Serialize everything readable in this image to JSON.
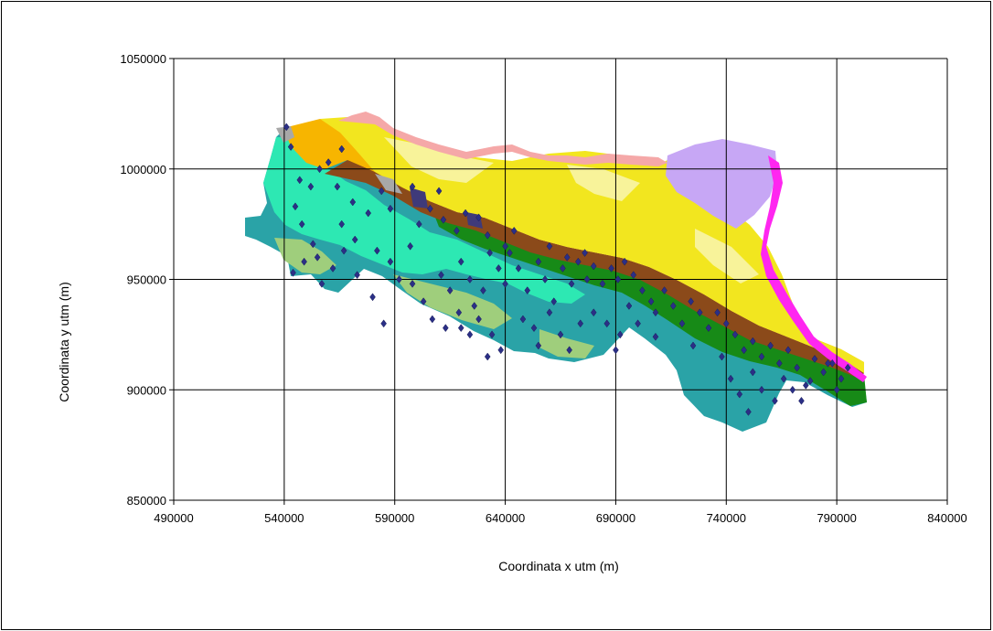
{
  "chart_data": {
    "type": "scatter",
    "title": "",
    "xlabel": "Coordinata x utm (m)",
    "ylabel": "Coordinata y utm (m)",
    "xlim": [
      490000,
      840000
    ],
    "ylim": [
      850000,
      1050000
    ],
    "xticks": [
      "490000",
      "540000",
      "590000",
      "640000",
      "690000",
      "740000",
      "790000",
      "840000"
    ],
    "yticks": [
      "850000",
      "900000",
      "950000",
      "1000000",
      "1050000"
    ],
    "grid": true,
    "background": "geological map of Emilia-Romagna region",
    "series": [
      {
        "marker": "diamond",
        "color": "#2b2f86",
        "points": [
          [
            541000,
            1019000
          ],
          [
            543000,
            1010000
          ],
          [
            547000,
            995000
          ],
          [
            552000,
            992000
          ],
          [
            556000,
            1000000
          ],
          [
            560000,
            1003000
          ],
          [
            566000,
            1009000
          ],
          [
            545000,
            983000
          ],
          [
            548000,
            975000
          ],
          [
            553000,
            966000
          ],
          [
            549000,
            958000
          ],
          [
            544000,
            953000
          ],
          [
            557000,
            948000
          ],
          [
            566000,
            975000
          ],
          [
            572000,
            968000
          ],
          [
            578000,
            980000
          ],
          [
            584000,
            990000
          ],
          [
            588000,
            982000
          ],
          [
            582000,
            963000
          ],
          [
            573000,
            952000
          ],
          [
            580000,
            942000
          ],
          [
            588000,
            958000
          ],
          [
            592000,
            950000
          ],
          [
            597000,
            965000
          ],
          [
            601000,
            975000
          ],
          [
            606000,
            982000
          ],
          [
            612000,
            977000
          ],
          [
            618000,
            972000
          ],
          [
            622000,
            980000
          ],
          [
            628000,
            978000
          ],
          [
            632000,
            970000
          ],
          [
            598000,
            948000
          ],
          [
            603000,
            940000
          ],
          [
            607000,
            932000
          ],
          [
            611000,
            952000
          ],
          [
            615000,
            945000
          ],
          [
            620000,
            958000
          ],
          [
            624000,
            950000
          ],
          [
            626000,
            938000
          ],
          [
            630000,
            945000
          ],
          [
            633000,
            962000
          ],
          [
            637000,
            955000
          ],
          [
            640000,
            948000
          ],
          [
            613000,
            928000
          ],
          [
            619000,
            935000
          ],
          [
            624000,
            925000
          ],
          [
            628000,
            932000
          ],
          [
            634000,
            925000
          ],
          [
            638000,
            918000
          ],
          [
            642000,
            962000
          ],
          [
            646000,
            955000
          ],
          [
            650000,
            945000
          ],
          [
            655000,
            958000
          ],
          [
            658000,
            950000
          ],
          [
            662000,
            940000
          ],
          [
            666000,
            955000
          ],
          [
            670000,
            948000
          ],
          [
            673000,
            958000
          ],
          [
            677000,
            950000
          ],
          [
            680000,
            956000
          ],
          [
            684000,
            948000
          ],
          [
            688000,
            955000
          ],
          [
            691000,
            950000
          ],
          [
            694000,
            958000
          ],
          [
            698000,
            952000
          ],
          [
            702000,
            945000
          ],
          [
            706000,
            940000
          ],
          [
            648000,
            932000
          ],
          [
            653000,
            928000
          ],
          [
            660000,
            935000
          ],
          [
            665000,
            925000
          ],
          [
            669000,
            918000
          ],
          [
            674000,
            930000
          ],
          [
            680000,
            935000
          ],
          [
            686000,
            930000
          ],
          [
            692000,
            925000
          ],
          [
            696000,
            938000
          ],
          [
            700000,
            930000
          ],
          [
            708000,
            935000
          ],
          [
            712000,
            945000
          ],
          [
            716000,
            938000
          ],
          [
            720000,
            930000
          ],
          [
            724000,
            940000
          ],
          [
            728000,
            935000
          ],
          [
            732000,
            928000
          ],
          [
            736000,
            935000
          ],
          [
            740000,
            930000
          ],
          [
            744000,
            925000
          ],
          [
            748000,
            918000
          ],
          [
            752000,
            922000
          ],
          [
            756000,
            915000
          ],
          [
            738000,
            915000
          ],
          [
            742000,
            905000
          ],
          [
            746000,
            898000
          ],
          [
            750000,
            890000
          ],
          [
            752000,
            908000
          ],
          [
            756000,
            900000
          ],
          [
            760000,
            920000
          ],
          [
            764000,
            912000
          ],
          [
            768000,
            918000
          ],
          [
            772000,
            910000
          ],
          [
            776000,
            902000
          ],
          [
            780000,
            914000
          ],
          [
            784000,
            908000
          ],
          [
            788000,
            912000
          ],
          [
            792000,
            905000
          ],
          [
            795000,
            910000
          ],
          [
            790000,
            900000
          ],
          [
            762000,
            895000
          ],
          [
            766000,
            905000
          ],
          [
            770000,
            900000
          ],
          [
            774000,
            895000
          ],
          [
            778000,
            904000
          ],
          [
            786000,
            912000
          ],
          [
            598000,
            992000
          ],
          [
            610000,
            990000
          ],
          [
            640000,
            965000
          ],
          [
            644000,
            972000
          ],
          [
            660000,
            965000
          ],
          [
            668000,
            960000
          ],
          [
            676000,
            962000
          ],
          [
            564000,
            992000
          ],
          [
            571000,
            985000
          ],
          [
            555000,
            960000
          ],
          [
            562000,
            955000
          ],
          [
            567000,
            963000
          ],
          [
            585000,
            930000
          ],
          [
            620000,
            928000
          ],
          [
            632000,
            915000
          ],
          [
            655000,
            920000
          ],
          [
            690000,
            918000
          ],
          [
            708000,
            924000
          ],
          [
            725000,
            920000
          ]
        ]
      }
    ]
  }
}
